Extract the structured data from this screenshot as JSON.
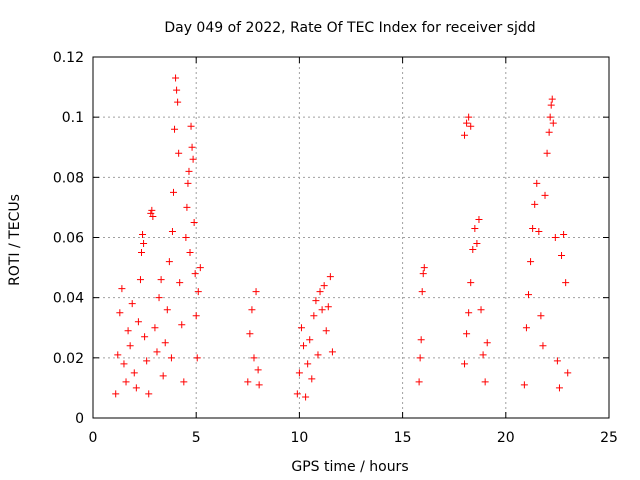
{
  "chart_data": {
    "type": "scatter",
    "title": "Day 049 of 2022, Rate Of TEC Index for receiver sjdd",
    "xlabel": "GPS time / hours",
    "ylabel": "ROTI / TECUs",
    "xlim": [
      0,
      25
    ],
    "ylim": [
      0,
      0.12
    ],
    "xticks": [
      "0",
      "5",
      "10",
      "15",
      "20",
      "25"
    ],
    "yticks": [
      "0",
      "0.02",
      "0.04",
      "0.06",
      "0.08",
      "0.1",
      "0.12"
    ],
    "grid": true,
    "marker": "plus",
    "color": "#ff0000",
    "series": [
      {
        "name": "ROTI",
        "points": [
          [
            1.1,
            0.008
          ],
          [
            1.2,
            0.021
          ],
          [
            1.3,
            0.035
          ],
          [
            1.4,
            0.043
          ],
          [
            1.5,
            0.018
          ],
          [
            1.6,
            0.012
          ],
          [
            1.7,
            0.029
          ],
          [
            1.8,
            0.024
          ],
          [
            1.9,
            0.038
          ],
          [
            2.0,
            0.015
          ],
          [
            2.1,
            0.01
          ],
          [
            2.2,
            0.032
          ],
          [
            2.3,
            0.046
          ],
          [
            2.35,
            0.055
          ],
          [
            2.4,
            0.061
          ],
          [
            2.45,
            0.058
          ],
          [
            2.5,
            0.027
          ],
          [
            2.6,
            0.019
          ],
          [
            2.7,
            0.008
          ],
          [
            2.8,
            0.068
          ],
          [
            2.85,
            0.069
          ],
          [
            2.9,
            0.067
          ],
          [
            3.0,
            0.03
          ],
          [
            3.1,
            0.022
          ],
          [
            3.2,
            0.04
          ],
          [
            3.3,
            0.046
          ],
          [
            3.4,
            0.014
          ],
          [
            3.5,
            0.025
          ],
          [
            3.6,
            0.036
          ],
          [
            3.7,
            0.052
          ],
          [
            3.8,
            0.02
          ],
          [
            3.85,
            0.062
          ],
          [
            3.9,
            0.075
          ],
          [
            3.95,
            0.096
          ],
          [
            4.0,
            0.113
          ],
          [
            4.05,
            0.109
          ],
          [
            4.1,
            0.105
          ],
          [
            4.15,
            0.088
          ],
          [
            4.2,
            0.045
          ],
          [
            4.3,
            0.031
          ],
          [
            4.4,
            0.012
          ],
          [
            4.5,
            0.06
          ],
          [
            4.55,
            0.07
          ],
          [
            4.6,
            0.078
          ],
          [
            4.65,
            0.082
          ],
          [
            4.7,
            0.055
          ],
          [
            4.75,
            0.097
          ],
          [
            4.8,
            0.09
          ],
          [
            4.85,
            0.086
          ],
          [
            4.9,
            0.065
          ],
          [
            4.95,
            0.048
          ],
          [
            5.0,
            0.034
          ],
          [
            5.05,
            0.02
          ],
          [
            5.1,
            0.042
          ],
          [
            5.2,
            0.05
          ],
          [
            7.5,
            0.012
          ],
          [
            7.6,
            0.028
          ],
          [
            7.7,
            0.036
          ],
          [
            7.8,
            0.02
          ],
          [
            7.9,
            0.042
          ],
          [
            8.0,
            0.016
          ],
          [
            8.05,
            0.011
          ],
          [
            9.9,
            0.008
          ],
          [
            10.0,
            0.015
          ],
          [
            10.1,
            0.03
          ],
          [
            10.2,
            0.024
          ],
          [
            10.3,
            0.007
          ],
          [
            10.4,
            0.018
          ],
          [
            10.5,
            0.026
          ],
          [
            10.6,
            0.013
          ],
          [
            10.7,
            0.034
          ],
          [
            10.8,
            0.039
          ],
          [
            10.9,
            0.021
          ],
          [
            11.0,
            0.042
          ],
          [
            11.1,
            0.036
          ],
          [
            11.2,
            0.044
          ],
          [
            11.3,
            0.029
          ],
          [
            11.4,
            0.037
          ],
          [
            11.5,
            0.047
          ],
          [
            11.6,
            0.022
          ],
          [
            15.8,
            0.012
          ],
          [
            15.85,
            0.02
          ],
          [
            15.9,
            0.026
          ],
          [
            15.95,
            0.042
          ],
          [
            16.0,
            0.048
          ],
          [
            16.05,
            0.05
          ],
          [
            18.0,
            0.094
          ],
          [
            18.1,
            0.098
          ],
          [
            18.2,
            0.1
          ],
          [
            18.3,
            0.097
          ],
          [
            18.0,
            0.018
          ],
          [
            18.1,
            0.028
          ],
          [
            18.2,
            0.035
          ],
          [
            18.3,
            0.045
          ],
          [
            18.4,
            0.056
          ],
          [
            18.5,
            0.063
          ],
          [
            18.6,
            0.058
          ],
          [
            18.7,
            0.066
          ],
          [
            18.8,
            0.036
          ],
          [
            18.9,
            0.021
          ],
          [
            19.0,
            0.012
          ],
          [
            19.1,
            0.025
          ],
          [
            20.9,
            0.011
          ],
          [
            21.0,
            0.03
          ],
          [
            21.1,
            0.041
          ],
          [
            21.2,
            0.052
          ],
          [
            21.3,
            0.063
          ],
          [
            21.4,
            0.071
          ],
          [
            21.5,
            0.078
          ],
          [
            21.6,
            0.062
          ],
          [
            21.7,
            0.034
          ],
          [
            21.8,
            0.024
          ],
          [
            21.9,
            0.074
          ],
          [
            22.0,
            0.088
          ],
          [
            22.1,
            0.095
          ],
          [
            22.15,
            0.1
          ],
          [
            22.2,
            0.104
          ],
          [
            22.25,
            0.106
          ],
          [
            22.3,
            0.098
          ],
          [
            22.4,
            0.06
          ],
          [
            22.5,
            0.019
          ],
          [
            22.6,
            0.01
          ],
          [
            22.7,
            0.054
          ],
          [
            22.8,
            0.061
          ],
          [
            22.9,
            0.045
          ],
          [
            23.0,
            0.015
          ]
        ]
      }
    ]
  }
}
